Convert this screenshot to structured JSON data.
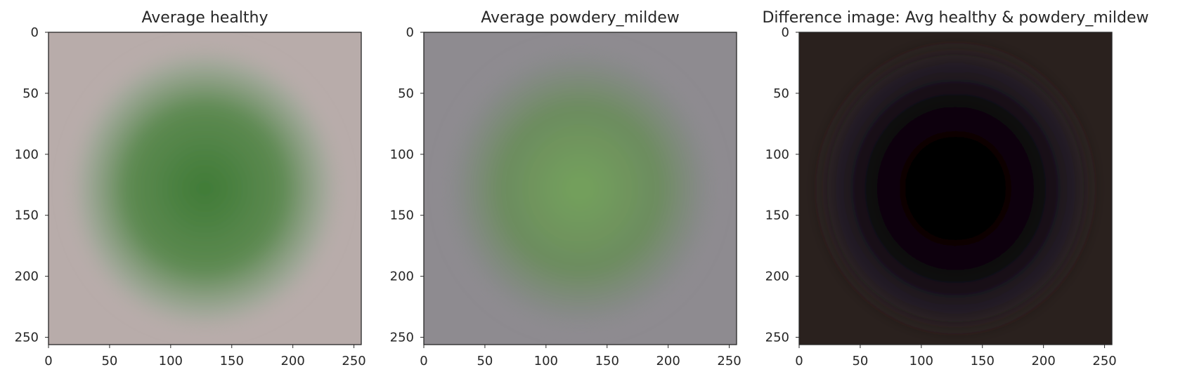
{
  "chart_data": [
    {
      "type": "heatmap",
      "title": "Average healthy",
      "xlim": [
        0,
        256
      ],
      "ylim": [
        256,
        0
      ],
      "xticks": [
        0,
        50,
        100,
        150,
        200,
        250
      ],
      "yticks": [
        0,
        50,
        100,
        150,
        200,
        250
      ],
      "grid": false,
      "colors": {
        "background": "#b8acaa",
        "leaf_center": "#3f7b36",
        "leaf_mid": "#5e8a52",
        "leaf_edge": "#9ea898"
      }
    },
    {
      "type": "heatmap",
      "title": "Average powdery_mildew",
      "xlim": [
        0,
        256
      ],
      "ylim": [
        256,
        0
      ],
      "xticks": [
        0,
        50,
        100,
        150,
        200,
        250
      ],
      "yticks": [
        0,
        50,
        100,
        150,
        200,
        250
      ],
      "grid": false,
      "colors": {
        "background": "#8e8b90",
        "leaf_center": "#74a25c",
        "leaf_mid": "#6c8c5e",
        "leaf_edge": "#858a86"
      }
    },
    {
      "type": "heatmap",
      "title": "Difference image: Avg healthy & powdery_mildew",
      "xlim": [
        0,
        256
      ],
      "ylim": [
        256,
        0
      ],
      "xticks": [
        0,
        50,
        100,
        150,
        200,
        250
      ],
      "yticks": [
        0,
        50,
        100,
        150,
        200,
        250
      ],
      "grid": false,
      "colors": {
        "background": "#2a211e",
        "leaf_center": "#000000",
        "leaf_mid": "#0a0609",
        "leaf_edge": "#241c28"
      }
    }
  ]
}
